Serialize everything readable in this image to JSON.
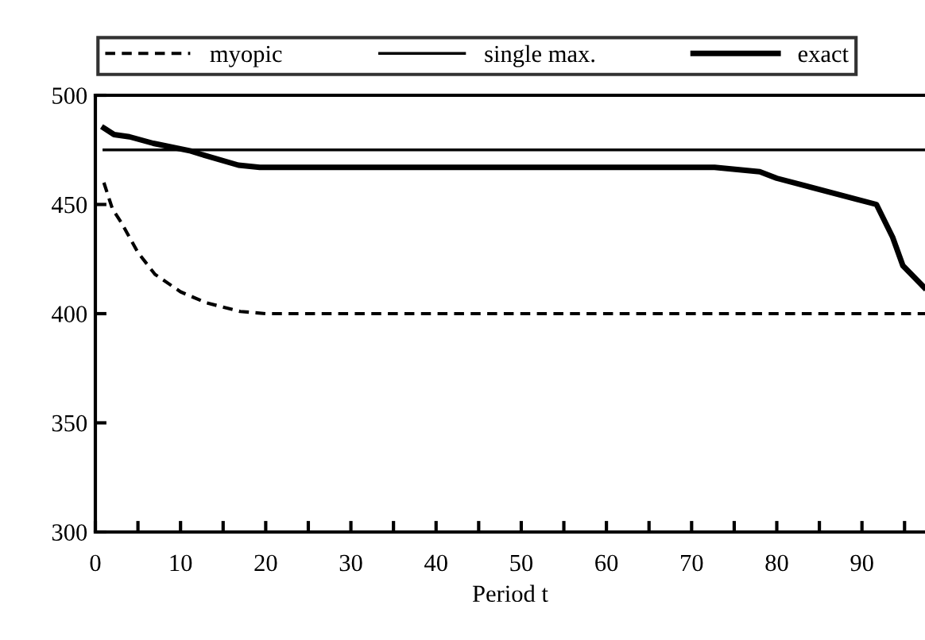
{
  "chart_data": {
    "type": "line",
    "xlabel": "Period t",
    "legend": "top",
    "xlim": [
      0,
      97.4
    ],
    "ylim": [
      300,
      500
    ],
    "xticks": [
      0,
      {
        "value": 5,
        "label": null
      },
      10,
      {
        "value": 15,
        "label": null
      },
      20,
      {
        "value": 25,
        "label": null
      },
      30,
      {
        "value": 35,
        "label": null
      },
      40,
      {
        "value": 45,
        "label": null
      },
      50,
      {
        "value": 55,
        "label": null
      },
      60,
      {
        "value": 65,
        "label": null
      },
      70,
      {
        "value": 75,
        "label": null
      },
      80,
      {
        "value": 85,
        "label": null
      },
      90,
      {
        "value": 95,
        "label": null
      }
    ],
    "yticks": [
      300,
      350,
      400,
      450,
      500
    ],
    "series": [
      {
        "name": "myopic",
        "color": "#000000",
        "line_style": "dashed",
        "x": [
          1,
          2,
          3,
          5,
          7,
          10,
          13,
          17,
          20,
          97.4
        ],
        "values": [
          460,
          448,
          442,
          428,
          418,
          410,
          405,
          401,
          400,
          400
        ]
      },
      {
        "name": "single max.",
        "color": "#000000",
        "line_style": "solid",
        "x": [
          1,
          97.4
        ],
        "values": [
          475,
          475
        ]
      },
      {
        "name": "exact",
        "color": "#000000",
        "line_style": "solid",
        "x": [
          1,
          2.2,
          4,
          6.8,
          11.2,
          12.4,
          16.8,
          19.3,
          40,
          60,
          72.7,
          78,
          80,
          91.7,
          93.6,
          94.8,
          97.3
        ],
        "values": [
          485,
          482,
          481,
          478,
          474.5,
          473,
          468,
          467,
          467,
          467,
          467,
          465,
          462,
          450,
          435,
          422,
          412
        ]
      }
    ]
  }
}
